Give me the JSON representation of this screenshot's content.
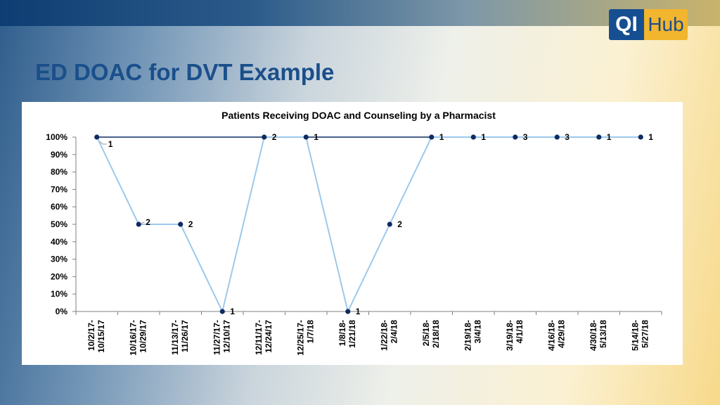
{
  "header": {
    "title": "ED DOAC for DVT Example",
    "logo": {
      "part1": "QI",
      "part2": "Hub",
      "colors": {
        "qi_bg": "#164f91",
        "hub_bg": "#f2b52e"
      }
    }
  },
  "chart_data": {
    "type": "line",
    "title": "Patients Receiving DOAC and Counseling by a Pharmacist",
    "xlabel": "",
    "ylabel": "",
    "ylim": [
      0,
      100
    ],
    "y_unit": "%",
    "y_ticks": [
      "0%",
      "10%",
      "20%",
      "30%",
      "40%",
      "50%",
      "60%",
      "70%",
      "80%",
      "90%",
      "100%"
    ],
    "categories": [
      "10/2/17-10/15/17",
      "10/16/17-10/29/17",
      "11/13/17-11/26/17",
      "11/27/17-12/10/17",
      "12/11/17-12/24/17",
      "12/25/17-1/7/18",
      "1/8/18-1/21/18",
      "1/22/18-2/4/18",
      "2/5/18-2/18/18",
      "2/19/18-3/4/18",
      "3/19/18-4/1/18",
      "4/16/18-4/29/18",
      "4/30/18-5/13/18",
      "5/14/18-5/27/18"
    ],
    "category_lines": [
      [
        "10/2/17-",
        "10/15/17"
      ],
      [
        "10/16/17-",
        "10/29/17"
      ],
      [
        "11/13/17-",
        "11/26/17"
      ],
      [
        "11/27/17-",
        "12/10/17"
      ],
      [
        "12/11/17-",
        "12/24/17"
      ],
      [
        "12/25/17-",
        "1/7/18"
      ],
      [
        "1/8/18-",
        "1/21/18"
      ],
      [
        "1/22/18-",
        "2/4/18"
      ],
      [
        "2/5/18-",
        "2/18/18"
      ],
      [
        "2/19/18-",
        "3/4/18"
      ],
      [
        "3/19/18-",
        "4/1/18"
      ],
      [
        "4/16/18-",
        "4/29/18"
      ],
      [
        "4/30/18-",
        "5/13/18"
      ],
      [
        "5/14/18-",
        "5/27/18"
      ]
    ],
    "series": [
      {
        "values": [
          100,
          50,
          50,
          0,
          100,
          100,
          0,
          50,
          100,
          100,
          100,
          100,
          100,
          100
        ],
        "data_labels": [
          "1",
          "2",
          "2",
          "1",
          "2",
          "1",
          "1",
          "2",
          "1",
          "1",
          "3",
          "3",
          "1",
          "1"
        ],
        "line_color": "#9cc9ec",
        "marker_color": "#0e2b63"
      },
      {
        "values": [
          100,
          100,
          100,
          100,
          100,
          100,
          100,
          100,
          100,
          100,
          100,
          100,
          100,
          100
        ],
        "line_color": "#0e2b63"
      }
    ],
    "grid": false,
    "legend": "none"
  }
}
